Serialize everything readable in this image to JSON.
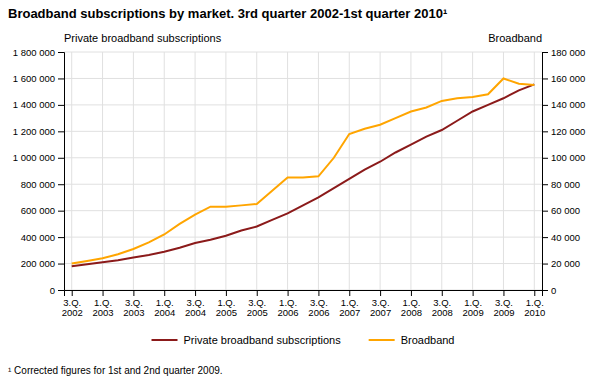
{
  "chart_data": {
    "type": "line",
    "title": "Broadband subscriptions by market. 3rd quarter 2002-1st quarter 2010¹",
    "ylabel": "Private broadband subscriptions",
    "y2label": "Broadband",
    "annotations": [
      "¹ Corrected figures for 1st and 2nd quarter 2009."
    ],
    "categories": [
      "3.Q.\n2002",
      null,
      "1.Q.\n2003",
      null,
      "3.Q.\n2003",
      null,
      "1.Q.\n2004",
      null,
      "3.Q.\n2004",
      null,
      "1.Q.\n2005",
      null,
      "3.Q.\n2005",
      null,
      "1.Q.\n2006",
      null,
      "3.Q.\n2006",
      null,
      "1.Q.\n2007",
      null,
      "3.Q.\n2007",
      null,
      "1.Q.\n2008",
      null,
      "3.Q.\n2008",
      null,
      "1.Q.\n2009",
      null,
      "3.Q.\n2009",
      null,
      "1.Q.\n2010"
    ],
    "series": [
      {
        "name": "Private broadband subscriptions",
        "color": "#8B1A1A",
        "values": [
          180000,
          195000,
          210000,
          225000,
          245000,
          265000,
          290000,
          320000,
          355000,
          380000,
          410000,
          450000,
          480000,
          530000,
          580000,
          640000,
          700000,
          770000,
          840000,
          910000,
          970000,
          1040000,
          1100000,
          1160000,
          1210000,
          1280000,
          1350000,
          1400000,
          1450000,
          1510000,
          1555000
        ]
      },
      {
        "name": "Broadband",
        "color": "#FFA500",
        "axis": "y2",
        "values": [
          20000,
          22000,
          24000,
          27000,
          31000,
          36000,
          42000,
          50000,
          57000,
          63000,
          63000,
          64000,
          65000,
          75000,
          85000,
          85000,
          86000,
          100000,
          118000,
          122000,
          125000,
          130000,
          135000,
          138000,
          143000,
          145000,
          146000,
          148000,
          160000,
          156000,
          155000
        ]
      }
    ],
    "ylim": [
      0,
      1800000
    ],
    "yticks": [
      0,
      {
        "value": 200000,
        "label": "200 000"
      },
      {
        "value": 400000,
        "label": "400 000"
      },
      {
        "value": 600000,
        "label": "600 000"
      },
      {
        "value": 800000,
        "label": "800 000"
      },
      {
        "value": 1000000,
        "label": "1 000 000"
      },
      {
        "value": 1200000,
        "label": "1 200 000"
      },
      {
        "value": 1400000,
        "label": "1 400 000"
      },
      {
        "value": 1600000,
        "label": "1 600 000"
      },
      {
        "value": 1800000,
        "label": "1 800 000"
      }
    ],
    "y2lim": [
      0,
      180000
    ],
    "y2ticks": [
      0,
      {
        "value": 20000,
        "label": "20 000"
      },
      {
        "value": 40000,
        "label": "40 000"
      },
      {
        "value": 60000,
        "label": "60 000"
      },
      {
        "value": 80000,
        "label": "80 000"
      },
      {
        "value": 100000,
        "label": "100 000"
      },
      {
        "value": 120000,
        "label": "120 000"
      },
      {
        "value": 140000,
        "label": "140 000"
      },
      {
        "value": 160000,
        "label": "160 000"
      },
      {
        "value": 180000,
        "label": "180 000"
      }
    ],
    "grid": true,
    "legend": "bottom"
  }
}
